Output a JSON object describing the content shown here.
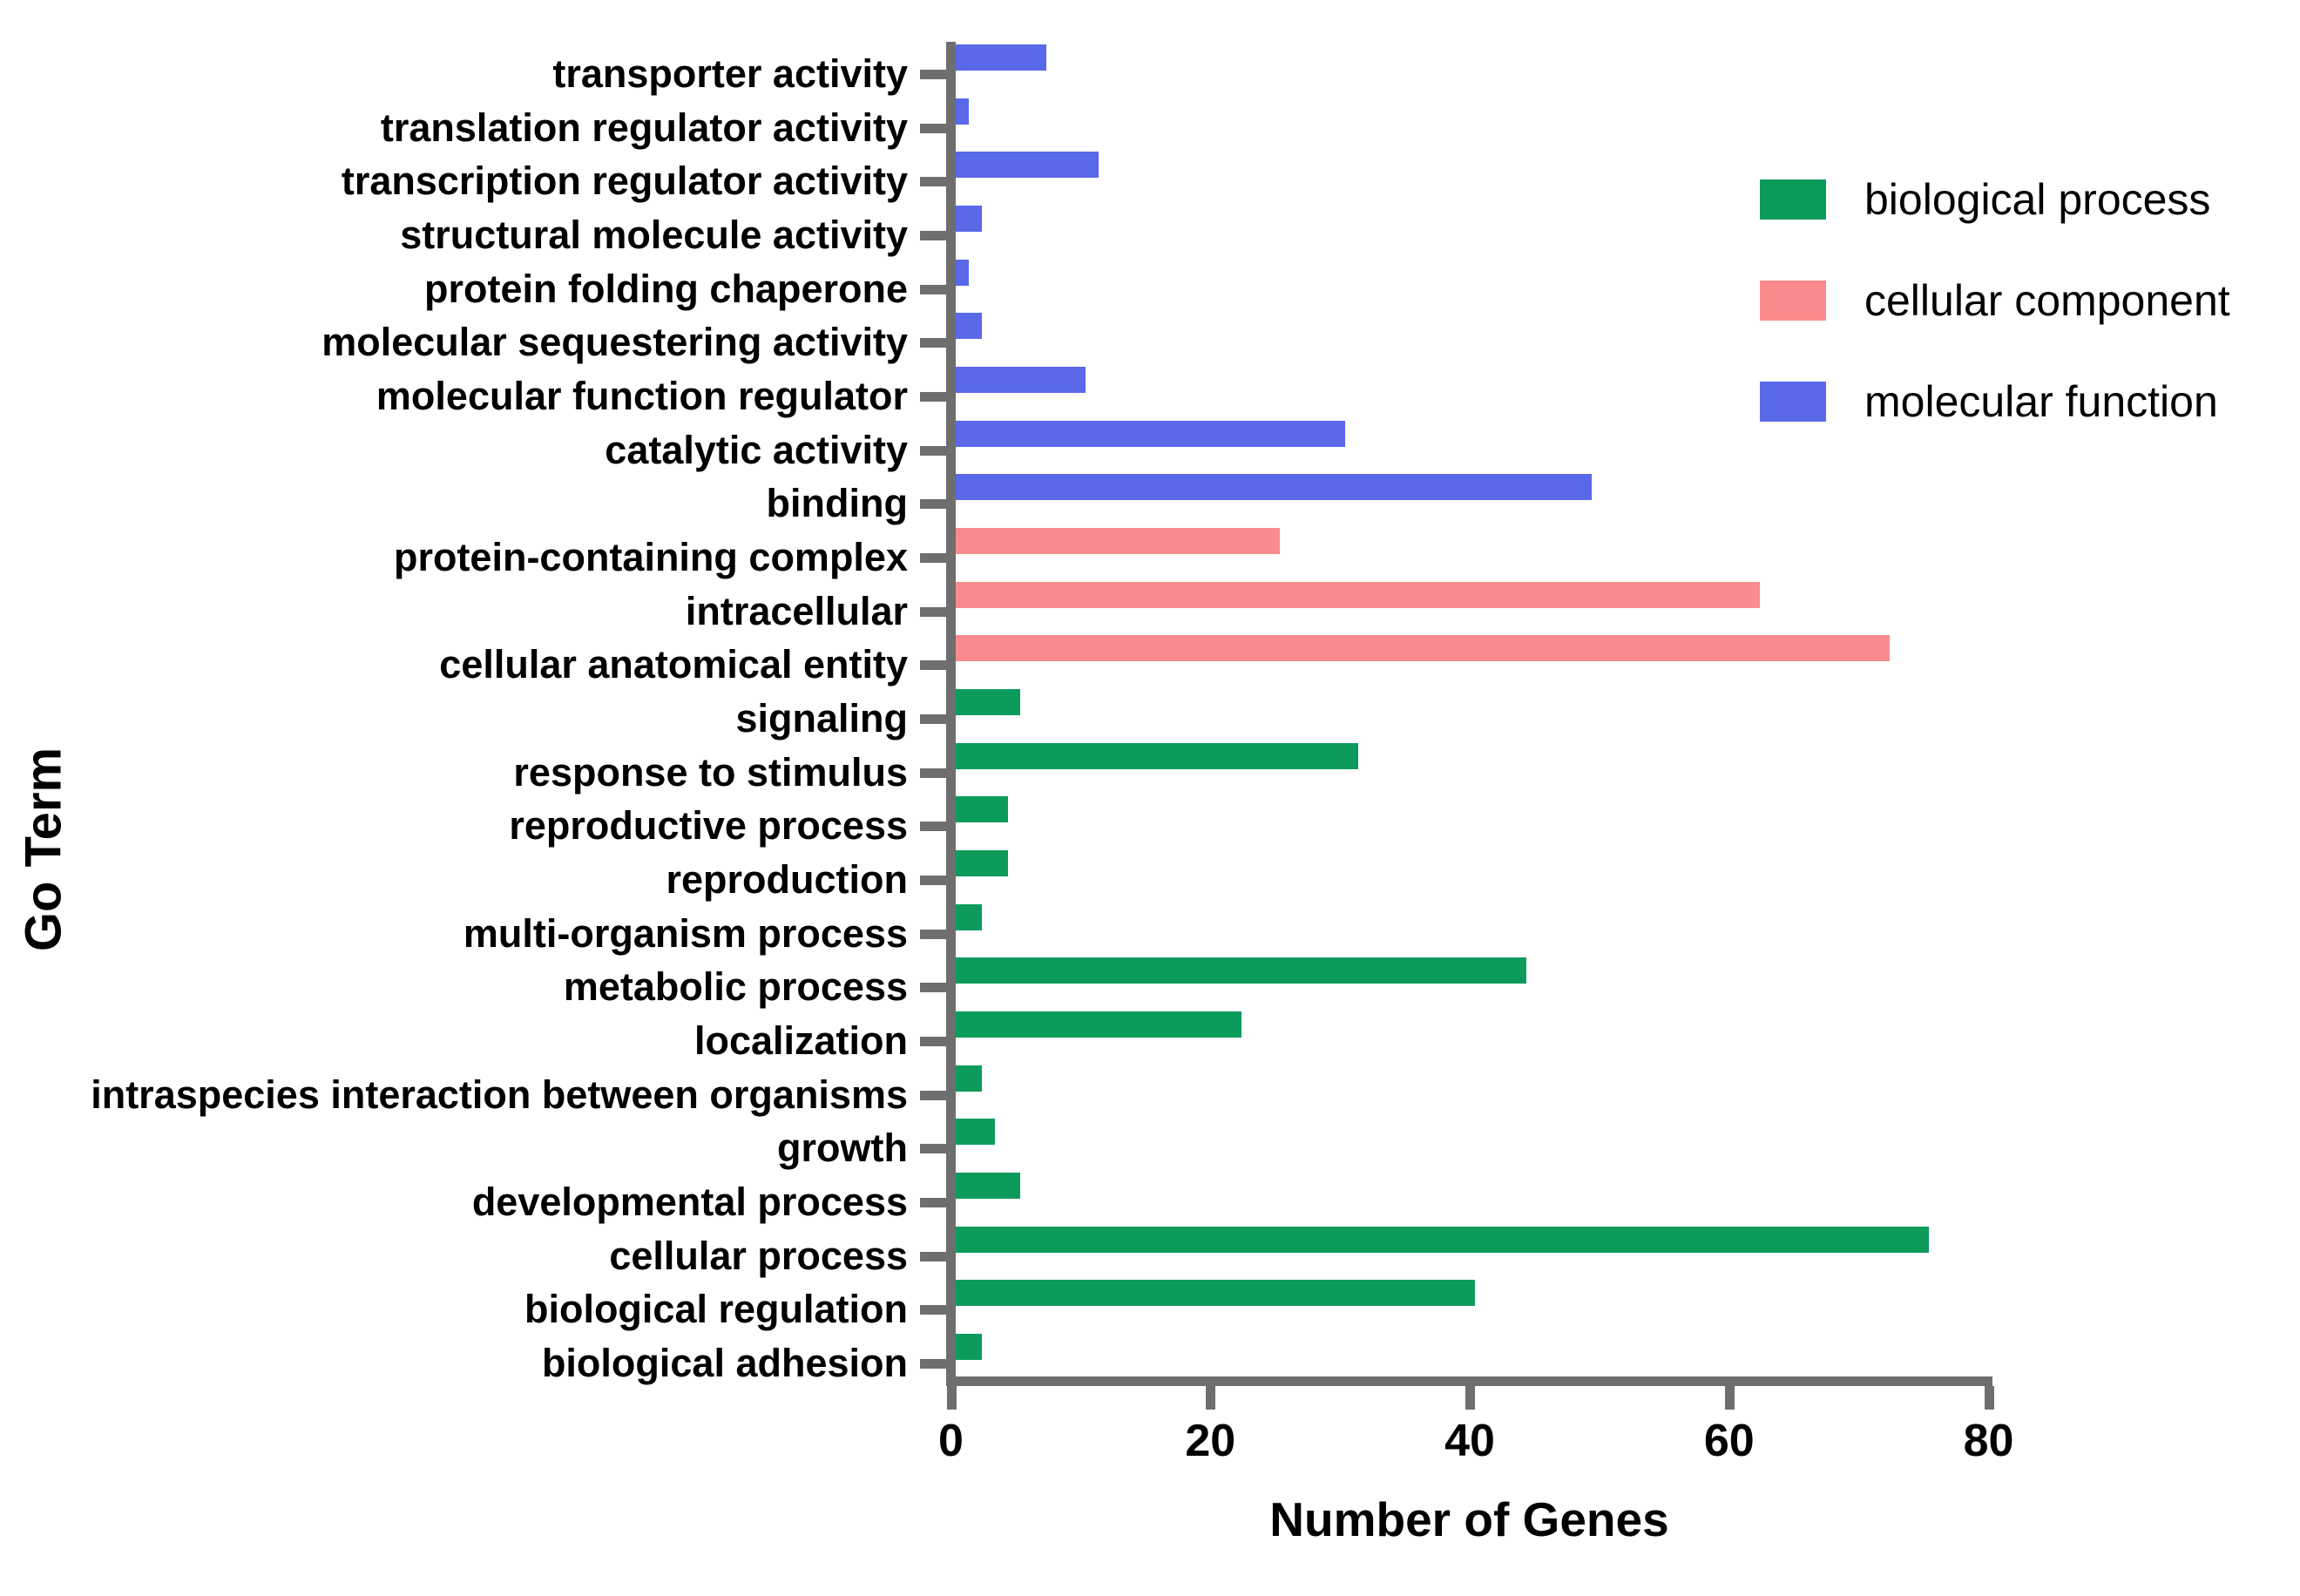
{
  "chart_data": {
    "type": "bar",
    "orientation": "horizontal",
    "xlabel": "Number of Genes",
    "ylabel": "Go Term",
    "xlim": [
      0,
      80
    ],
    "xticks": [
      0,
      20,
      40,
      60,
      80
    ],
    "grid": false,
    "axis_color": "#6E6E6E",
    "legend_position": "top-right",
    "legend": [
      {
        "label": "biological process",
        "color": "#0D9B5C"
      },
      {
        "label": "cellular component",
        "color": "#FA8A8C"
      },
      {
        "label": "molecular function",
        "color": "#5969E8"
      }
    ],
    "series": [
      {
        "name": "molecular function",
        "color": "#5969E8",
        "categories": [
          "transporter activity",
          "translation regulator activity",
          "transcription regulator activity",
          "structural molecule activity",
          "protein folding chaperone",
          "molecular sequestering activity",
          "molecular function regulator",
          "catalytic activity",
          "binding"
        ],
        "values": [
          7,
          1,
          11,
          2,
          1,
          2,
          10,
          30,
          49
        ]
      },
      {
        "name": "cellular component",
        "color": "#FA8A8C",
        "categories": [
          "protein-containing complex",
          "intracellular",
          "cellular anatomical entity"
        ],
        "values": [
          25,
          62,
          72
        ]
      },
      {
        "name": "biological process",
        "color": "#0D9B5C",
        "categories": [
          "signaling",
          "response to stimulus",
          "reproductive process",
          "reproduction",
          "multi-organism process",
          "metabolic process",
          "localization",
          "intraspecies interaction between organisms",
          "growth",
          "developmental process",
          "cellular process",
          "biological regulation",
          "biological adhesion"
        ],
        "values": [
          5,
          31,
          4,
          4,
          2,
          44,
          22,
          2,
          3,
          5,
          75,
          40,
          2
        ]
      }
    ]
  }
}
